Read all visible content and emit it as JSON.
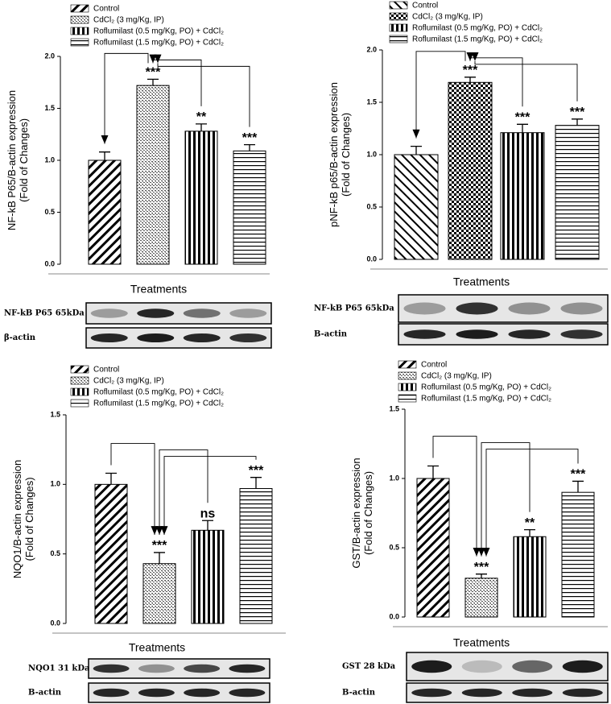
{
  "chart_data": [
    {
      "type": "bar",
      "ylabel": [
        "NF-kB P65/B-actin expression",
        "(Fold of Changes)"
      ],
      "xlabel": "Treatments",
      "ylim": [
        0,
        2
      ],
      "yticks": [
        {
          "value": 0,
          "label": "0.0"
        },
        {
          "value": 0.5,
          "label": "0.5"
        },
        {
          "value": 1,
          "label": "1.0"
        },
        {
          "value": 1.5,
          "label": "1.5"
        },
        {
          "value": 2,
          "label": "2.0"
        }
      ],
      "series": [
        {
          "name": "Control",
          "pattern": "diag-down",
          "values": [
            1.0
          ],
          "errors": [
            0.08
          ],
          "annotations": [
            null
          ]
        },
        {
          "name": "CdCl₂ (3 mg/Kg, IP)",
          "pattern": "brick",
          "values": [
            1.72
          ],
          "errors": [
            0.06
          ],
          "annotations": [
            "***"
          ]
        },
        {
          "name": "Roflumilast (0.5 mg/Kg, PO) + CdCl₂",
          "pattern": "vertical",
          "values": [
            1.28
          ],
          "errors": [
            0.07
          ],
          "annotations": [
            "**"
          ]
        },
        {
          "name": "Roflumilast (1.5 mg/Kg, PO) + CdCl₂",
          "pattern": "horizontal",
          "values": [
            1.09
          ],
          "errors": [
            0.06
          ],
          "annotations": [
            "***"
          ]
        }
      ],
      "blot_labels": [
        "NF-kB P65 65kDa",
        "β-actin"
      ]
    },
    {
      "type": "bar",
      "ylabel": [
        "pNF-kB p65/B-actin expression",
        "(Fold of Changes)"
      ],
      "xlabel": "Treatments",
      "ylim": [
        0,
        2
      ],
      "yticks": [
        {
          "value": 0,
          "label": "0.0"
        },
        {
          "value": 0.5,
          "label": "0.5"
        },
        {
          "value": 1,
          "label": "1.0"
        },
        {
          "value": 1.5,
          "label": "1.5"
        },
        {
          "value": 2,
          "label": "2.0"
        }
      ],
      "series": [
        {
          "name": "Control",
          "pattern": "diag-up",
          "values": [
            1.0
          ],
          "errors": [
            0.08
          ],
          "annotations": [
            null
          ]
        },
        {
          "name": "CdCl₂ (3 mg/Kg, IP)",
          "pattern": "checker",
          "values": [
            1.69
          ],
          "errors": [
            0.05
          ],
          "annotations": [
            "***"
          ]
        },
        {
          "name": "Roflumilast (0.5 mg/Kg, PO) + CdCl₂",
          "pattern": "vertical",
          "values": [
            1.21
          ],
          "errors": [
            0.08
          ],
          "annotations": [
            "***"
          ]
        },
        {
          "name": "Roflumilast (1.5 mg/Kg, PO) + CdCl₂",
          "pattern": "horizontal",
          "values": [
            1.28
          ],
          "errors": [
            0.06
          ],
          "annotations": [
            "***"
          ]
        }
      ],
      "blot_labels": [
        "NF-kB P65 65kDa",
        "B-actin"
      ]
    },
    {
      "type": "bar",
      "ylabel": [
        "NQO1/B-actin expression",
        "(Fold of Changes)"
      ],
      "xlabel": "Treatments",
      "ylim": [
        0,
        1.5
      ],
      "yticks": [
        {
          "value": 0,
          "label": "0.0"
        },
        {
          "value": 0.5,
          "label": "0.5"
        },
        {
          "value": 1,
          "label": "1.0"
        },
        {
          "value": 1.5,
          "label": "1.5"
        }
      ],
      "series": [
        {
          "name": "Control",
          "pattern": "diag-down",
          "values": [
            1.0
          ],
          "errors": [
            0.08
          ],
          "annotations": [
            null
          ]
        },
        {
          "name": "CdCl₂ (3 mg/Kg, IP)",
          "pattern": "brick",
          "values": [
            0.43
          ],
          "errors": [
            0.08
          ],
          "annotations": [
            "***"
          ]
        },
        {
          "name": "Roflumilast (0.5 mg/Kg, PO) + CdCl₂",
          "pattern": "vertical",
          "values": [
            0.67
          ],
          "errors": [
            0.07
          ],
          "annotations": [
            "ns"
          ]
        },
        {
          "name": "Roflumilast (1.5 mg/Kg, PO) + CdCl₂",
          "pattern": "horizontal",
          "values": [
            0.97
          ],
          "errors": [
            0.08
          ],
          "annotations": [
            "***"
          ]
        }
      ],
      "blot_labels": [
        "NQO1 31 kDa",
        "B-actin"
      ]
    },
    {
      "type": "bar",
      "ylabel": [
        "GST/B-actin expression",
        "(Fold of Changes)"
      ],
      "xlabel": "Treatments",
      "ylim": [
        0,
        1.5
      ],
      "yticks": [
        {
          "value": 0,
          "label": "0.0"
        },
        {
          "value": 0.5,
          "label": "0.5"
        },
        {
          "value": 1,
          "label": "1.0"
        },
        {
          "value": 1.5,
          "label": "1.5"
        }
      ],
      "series": [
        {
          "name": "Control",
          "pattern": "diag-down",
          "values": [
            1.0
          ],
          "errors": [
            0.09
          ],
          "annotations": [
            null
          ]
        },
        {
          "name": "CdCl₂ (3 mg/Kg, IP)",
          "pattern": "brick",
          "values": [
            0.28
          ],
          "errors": [
            0.03
          ],
          "annotations": [
            "***"
          ]
        },
        {
          "name": "Roflumilast (0.5 mg/Kg, PO) + CdCl₂",
          "pattern": "vertical",
          "values": [
            0.58
          ],
          "errors": [
            0.05
          ],
          "annotations": [
            "**"
          ]
        },
        {
          "name": "Roflumilast (1.5 mg/Kg, PO) + CdCl₂",
          "pattern": "horizontal",
          "values": [
            0.9
          ],
          "errors": [
            0.08
          ],
          "annotations": [
            "***"
          ]
        }
      ],
      "blot_labels": [
        "GST 28 kDa",
        "B-actin"
      ]
    }
  ]
}
